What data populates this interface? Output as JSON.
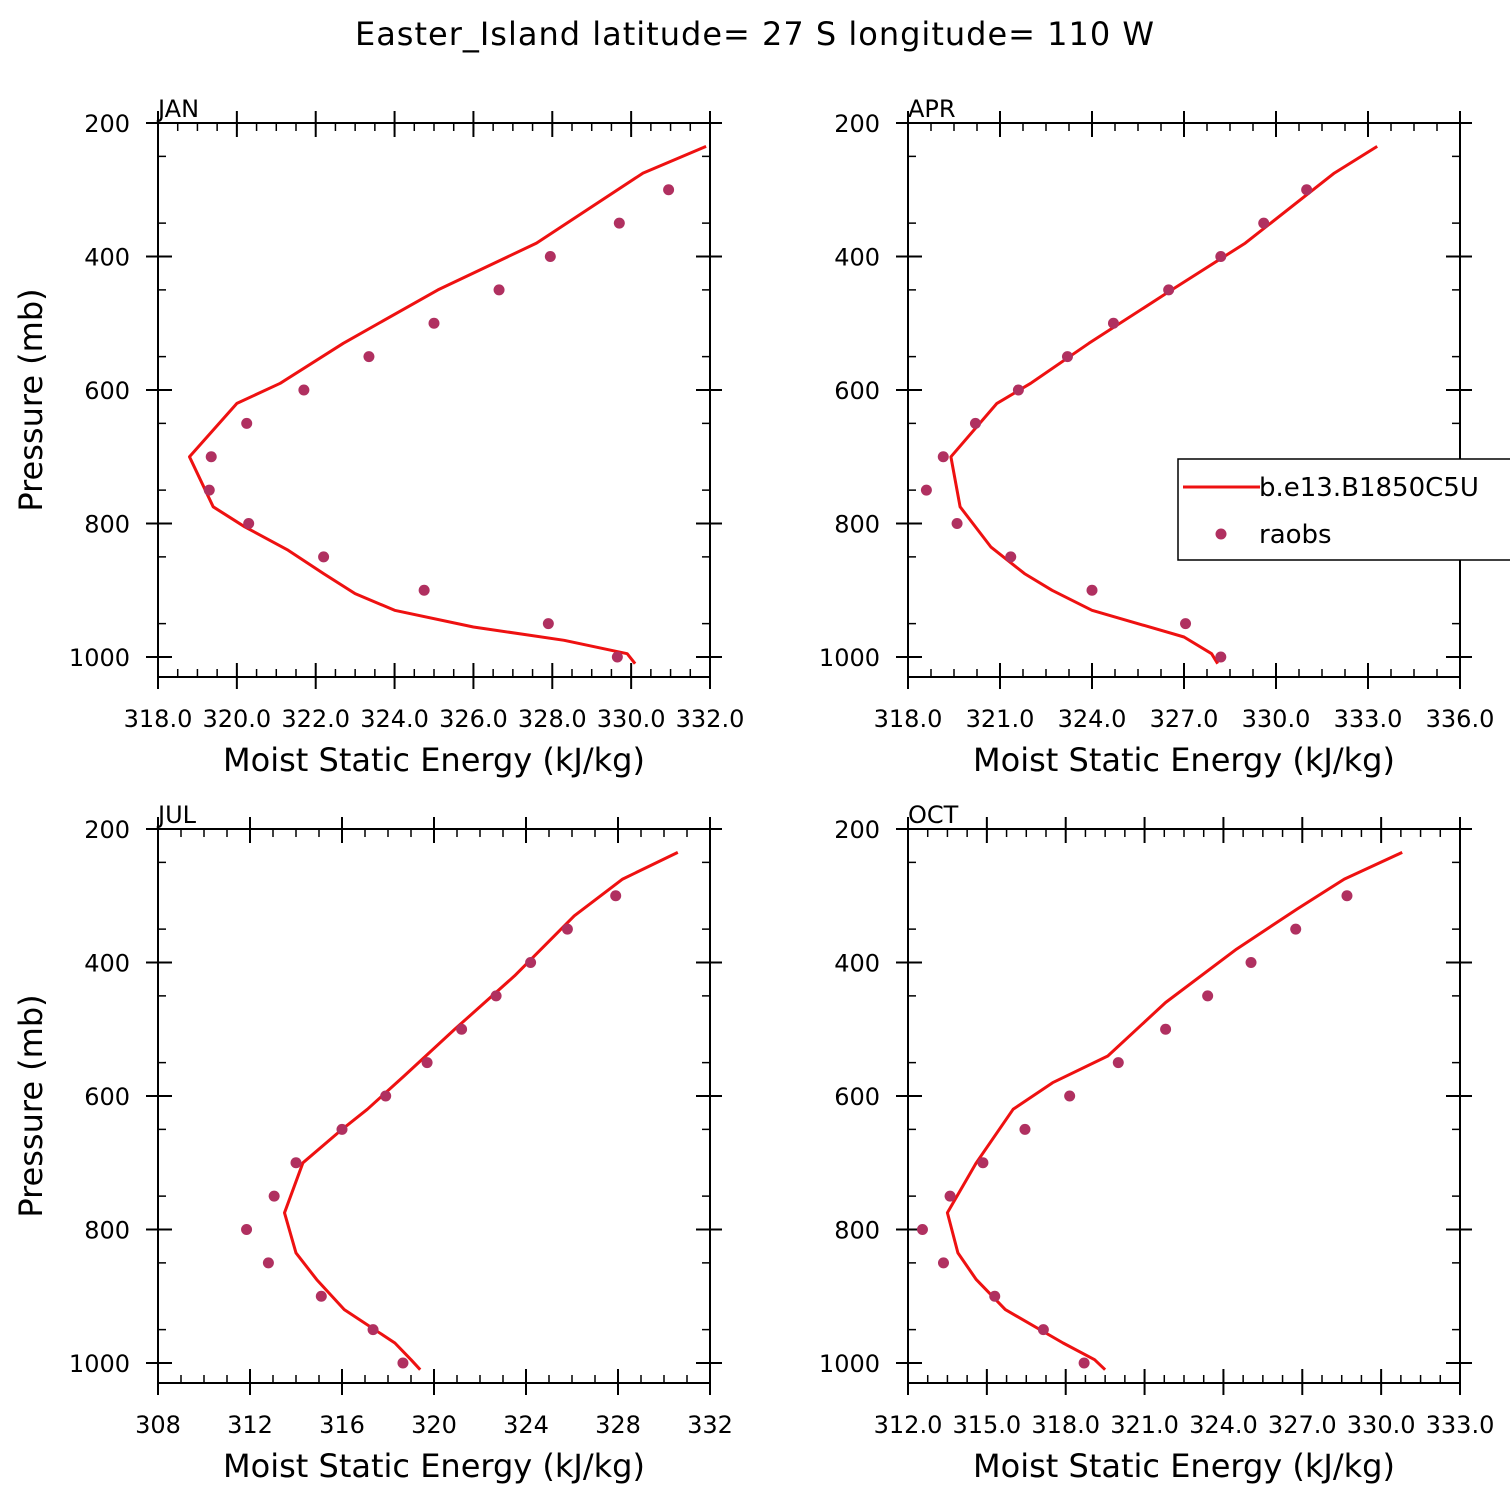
{
  "title": "Easter_Island  latitude= 27 S longitude= 110 W",
  "colors": {
    "model": "#ee1111",
    "obs": "#b03060",
    "axis": "#000000"
  },
  "chart_data": [
    {
      "type": "line",
      "panel": "JAN",
      "xlabel": "Moist Static Energy (kJ/kg)",
      "ylabel": "Pressure (mb)",
      "xlim": [
        318,
        332
      ],
      "xticks": [
        318,
        320,
        322,
        324,
        326,
        328,
        330,
        332
      ],
      "xtick_labels": [
        "318.0",
        "320.0",
        "322.0",
        "324.0",
        "326.0",
        "328.0",
        "330.0",
        "332.0"
      ],
      "ylim": [
        1000,
        200
      ],
      "yticks": [
        200,
        400,
        600,
        800,
        1000
      ],
      "ytick_labels": [
        "200",
        "400",
        "600",
        "800",
        "1000"
      ],
      "series": [
        {
          "name": "b.e13.B1850C5U",
          "style": "line",
          "x": [
            331.9,
            330.3,
            327.6,
            325.1,
            322.7,
            321.1,
            320.0,
            318.8,
            319.4,
            320.2,
            321.3,
            322.2,
            323.0,
            324.0,
            326.0,
            328.3,
            329.9,
            330.1
          ],
          "y": [
            235,
            275,
            380,
            450,
            530,
            590,
            620,
            700,
            775,
            805,
            840,
            875,
            905,
            930,
            955,
            975,
            995,
            1010
          ]
        },
        {
          "name": "raobs",
          "style": "points",
          "x": [
            330.95,
            329.7,
            327.95,
            326.65,
            325.0,
            323.35,
            321.7,
            320.25,
            319.35,
            319.3,
            320.3,
            322.2,
            324.75,
            327.9,
            329.65
          ],
          "y": [
            300,
            350,
            400,
            450,
            500,
            550,
            600,
            650,
            700,
            750,
            800,
            850,
            900,
            950,
            1000
          ]
        }
      ]
    },
    {
      "type": "line",
      "panel": "APR",
      "xlabel": "Moist Static Energy (kJ/kg)",
      "ylabel": "",
      "xlim": [
        318,
        336
      ],
      "xticks": [
        318,
        321,
        324,
        327,
        330,
        333,
        336
      ],
      "xtick_labels": [
        "318.0",
        "321.0",
        "324.0",
        "327.0",
        "330.0",
        "333.0",
        "336.0"
      ],
      "ylim": [
        1000,
        200
      ],
      "yticks": [
        200,
        400,
        600,
        800,
        1000
      ],
      "ytick_labels": [
        "200",
        "400",
        "600",
        "800",
        "1000"
      ],
      "series": [
        {
          "name": "b.e13.B1850C5U",
          "style": "line",
          "x": [
            333.3,
            331.9,
            329.0,
            326.6,
            323.9,
            322.0,
            320.9,
            319.4,
            319.7,
            320.7,
            321.8,
            322.7,
            324.0,
            327.0,
            327.9,
            328.1
          ],
          "y": [
            235,
            275,
            380,
            450,
            530,
            590,
            620,
            700,
            775,
            835,
            875,
            900,
            930,
            970,
            995,
            1010
          ]
        },
        {
          "name": "raobs",
          "style": "points",
          "x": [
            331.0,
            329.6,
            328.2,
            326.5,
            324.7,
            323.2,
            321.6,
            320.2,
            319.15,
            318.6,
            319.6,
            321.35,
            324.0,
            327.05,
            328.2
          ],
          "y": [
            300,
            350,
            400,
            450,
            500,
            550,
            600,
            650,
            700,
            750,
            800,
            850,
            900,
            950,
            1000
          ]
        }
      ]
    },
    {
      "type": "line",
      "panel": "JUL",
      "xlabel": "Moist Static Energy (kJ/kg)",
      "ylabel": "Pressure (mb)",
      "xlim": [
        308,
        332
      ],
      "xticks": [
        308,
        312,
        316,
        320,
        324,
        328,
        332
      ],
      "xtick_labels": [
        "308",
        "312",
        "316",
        "320",
        "324",
        "328",
        "332"
      ],
      "ylim": [
        1000,
        200
      ],
      "yticks": [
        200,
        400,
        600,
        800,
        1000
      ],
      "ytick_labels": [
        "200",
        "400",
        "600",
        "800",
        "1000"
      ],
      "series": [
        {
          "name": "b.e13.B1850C5U",
          "style": "line",
          "x": [
            330.6,
            328.2,
            326.1,
            323.5,
            320.9,
            318.7,
            317.1,
            316.0,
            314.3,
            313.5,
            314.0,
            314.9,
            316.1,
            318.3,
            319.0,
            319.4
          ],
          "y": [
            235,
            275,
            330,
            420,
            500,
            570,
            620,
            650,
            700,
            775,
            835,
            875,
            920,
            970,
            995,
            1010
          ]
        },
        {
          "name": "raobs",
          "style": "points",
          "x": [
            327.9,
            325.8,
            324.2,
            322.7,
            321.2,
            319.7,
            317.9,
            316.0,
            314.0,
            313.05,
            311.85,
            312.8,
            315.1,
            317.35,
            318.65
          ],
          "y": [
            300,
            350,
            400,
            450,
            500,
            550,
            600,
            650,
            700,
            750,
            800,
            850,
            900,
            950,
            1000
          ]
        }
      ]
    },
    {
      "type": "line",
      "panel": "OCT",
      "xlabel": "Moist Static Energy (kJ/kg)",
      "ylabel": "",
      "xlim": [
        312,
        333
      ],
      "xticks": [
        312,
        315,
        318,
        321,
        324,
        327,
        330,
        333
      ],
      "xtick_labels": [
        "312.0",
        "315.0",
        "318.0",
        "321.0",
        "324.0",
        "327.0",
        "330.0",
        "333.0"
      ],
      "ylim": [
        1000,
        200
      ],
      "yticks": [
        200,
        400,
        600,
        800,
        1000
      ],
      "ytick_labels": [
        "200",
        "400",
        "600",
        "800",
        "1000"
      ],
      "series": [
        {
          "name": "b.e13.B1850C5U",
          "style": "line",
          "x": [
            330.8,
            328.6,
            326.8,
            324.5,
            321.8,
            319.6,
            317.5,
            316.0,
            314.6,
            313.5,
            313.9,
            314.6,
            315.7,
            317.9,
            319.1,
            319.5
          ],
          "y": [
            235,
            275,
            320,
            380,
            460,
            540,
            580,
            620,
            700,
            775,
            835,
            875,
            920,
            970,
            995,
            1010
          ]
        },
        {
          "name": "raobs",
          "style": "points",
          "x": [
            328.7,
            326.75,
            325.05,
            323.4,
            321.8,
            320.0,
            318.15,
            316.45,
            314.85,
            313.6,
            312.55,
            313.35,
            315.3,
            317.15,
            318.7
          ],
          "y": [
            300,
            350,
            400,
            450,
            500,
            550,
            600,
            650,
            700,
            750,
            800,
            850,
            900,
            950,
            1000
          ]
        }
      ]
    }
  ],
  "legend": {
    "placement": "right-middle",
    "entries": [
      {
        "label": "b.e13.B1850C5U",
        "style": "line"
      },
      {
        "label": "raobs",
        "style": "points"
      }
    ]
  }
}
